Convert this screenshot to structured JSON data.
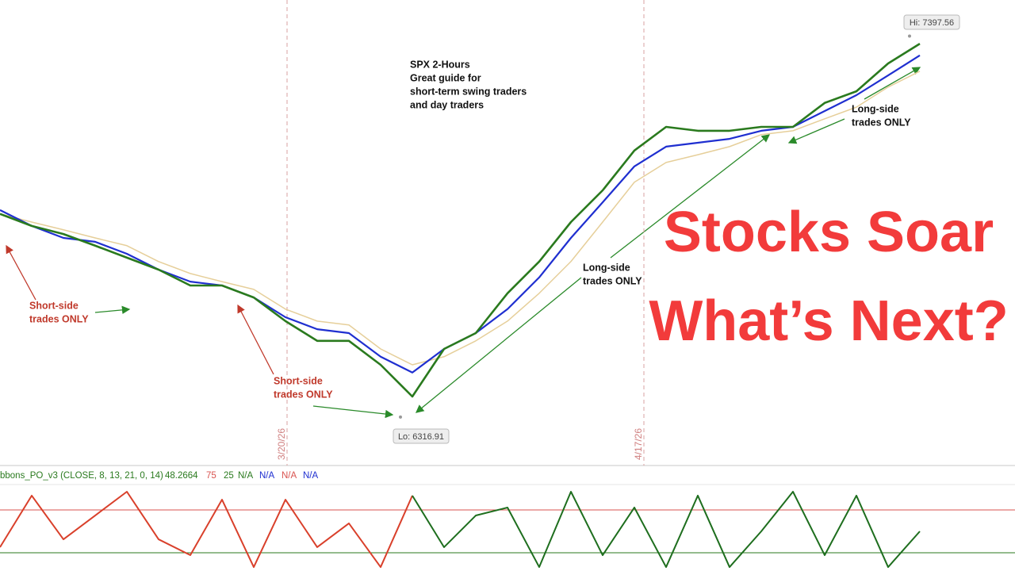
{
  "chart_data": {
    "type": "line",
    "xlim": [
      0,
      32
    ],
    "xticks": [
      {
        "value": 9.05,
        "label": "3/20/26"
      },
      {
        "value": 20.3,
        "label": "4/17/26"
      }
    ],
    "ylim": [
      6183.75,
      7500
    ],
    "x": [
      0,
      1,
      2,
      3,
      4,
      5,
      6,
      7,
      8,
      9,
      10,
      11,
      12,
      13,
      14,
      15,
      16,
      17,
      18,
      19,
      20,
      21,
      22,
      23,
      24,
      25,
      26,
      27,
      28,
      29
    ],
    "series": [
      {
        "color": "#e6cf9a",
        "values": [
          6893,
          6870,
          6848,
          6825,
          6803,
          6758,
          6724,
          6701,
          6679,
          6623,
          6589,
          6578,
          6510,
          6465,
          6488,
          6533,
          6589,
          6668,
          6758,
          6870,
          6983,
          7039,
          7061,
          7084,
          7118,
          7129,
          7163,
          7196,
          7253,
          7298
        ]
      },
      {
        "color": "#1f2fd0",
        "values": [
          6904,
          6859,
          6825,
          6814,
          6780,
          6735,
          6701,
          6690,
          6656,
          6600,
          6566,
          6555,
          6488,
          6443,
          6510,
          6555,
          6623,
          6713,
          6825,
          6926,
          7028,
          7084,
          7095,
          7106,
          7129,
          7140,
          7185,
          7230,
          7286,
          7343
        ]
      },
      {
        "color": "#2a7a1e",
        "values": [
          6893,
          6859,
          6836,
          6803,
          6769,
          6735,
          6690,
          6690,
          6656,
          6589,
          6533,
          6533,
          6465,
          6375,
          6510,
          6555,
          6668,
          6758,
          6870,
          6960,
          7073,
          7140,
          7129,
          7129,
          7140,
          7140,
          7208,
          7241,
          7320,
          7376
        ]
      }
    ],
    "hi": {
      "value": 7397.56,
      "label": "Hi: 7397.56"
    },
    "lo": {
      "value": 6316.91,
      "label": "Lo: 6316.91"
    },
    "annotations": [
      {
        "lines": [
          "SPX 2-Hours",
          "Great guide for",
          "short-term swing traders",
          "and day traders"
        ]
      },
      {
        "lines": [
          "Short-side",
          "trades ONLY"
        ]
      },
      {
        "lines": [
          "Short-side",
          "trades ONLY"
        ]
      },
      {
        "lines": [
          "Long-side",
          "trades ONLY"
        ]
      },
      {
        "lines": [
          "Long-side",
          "trades ONLY"
        ]
      }
    ],
    "headline": [
      "Stocks Soar",
      "What’s Next?"
    ],
    "oscillator": {
      "title": "bbons_PO_v3 (CLOSE, 8, 13, 21, 0, 14)",
      "last_value": 48.2664,
      "levels": [
        75,
        25
      ],
      "level_colors": [
        "#d9534f",
        "#2a7a1e"
      ],
      "na": [
        "N/A",
        "N/A",
        "N/A",
        "N/A"
      ],
      "ylim": [
        0,
        100
      ],
      "series": [
        {
          "color": "#d9402b",
          "values": [
            31.5,
            91.7,
            40.7,
            68.5,
            96.3,
            40.7,
            22.2,
            87,
            8.3,
            87,
            31.5,
            59.3,
            8.3,
            91.7,
            null,
            null,
            null,
            null,
            null,
            null,
            null,
            null,
            null,
            null,
            null,
            null,
            null,
            null,
            null,
            null
          ]
        },
        {
          "color": "#1e6e1e",
          "values": [
            null,
            null,
            null,
            null,
            null,
            null,
            null,
            null,
            null,
            null,
            null,
            null,
            null,
            91.7,
            31.5,
            68.5,
            77.8,
            8.3,
            96.3,
            22.2,
            77.8,
            8.3,
            91.7,
            8.3,
            50,
            96.3,
            22.2,
            91.7,
            8.3,
            50
          ]
        }
      ]
    }
  }
}
